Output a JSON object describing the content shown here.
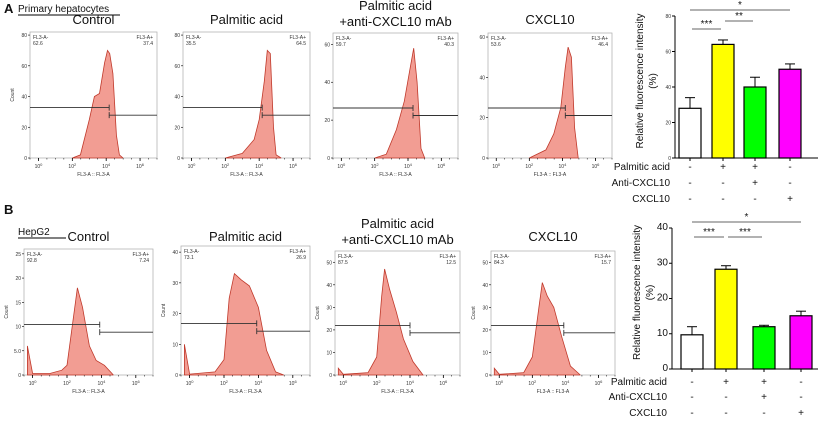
{
  "panels": [
    {
      "letter": "A",
      "cell_type": "Primary hepatocytes"
    },
    {
      "letter": "B",
      "cell_type": "HepG2"
    }
  ],
  "chart_data": [
    {
      "type": "area",
      "panel": "A",
      "title": "Control",
      "xlabel": "FL3-A :: FL3-A",
      "ylabel": "Count",
      "x_scale": "log",
      "xticks": [
        "10^0",
        "10^2",
        "10^4",
        "10^6"
      ],
      "yticks": [
        0,
        20,
        40,
        60,
        80
      ],
      "ylim": [
        0,
        82
      ],
      "gates": {
        "neg_label": "FL3-A-",
        "neg_value": "62.6",
        "pos_label": "FL3-A+",
        "pos_value": "37.4",
        "threshold": 15000
      },
      "points": [
        [
          100,
          0
        ],
        [
          300,
          2
        ],
        [
          1000,
          25
        ],
        [
          2000,
          40
        ],
        [
          4000,
          42
        ],
        [
          8000,
          62
        ],
        [
          12000,
          70
        ],
        [
          16000,
          68
        ],
        [
          25000,
          55
        ],
        [
          40000,
          15
        ],
        [
          60000,
          2
        ],
        [
          100000,
          0
        ]
      ]
    },
    {
      "type": "area",
      "panel": "A",
      "title": "Palmitic acid",
      "xlabel": "FL3-A :: FL3-A",
      "ylabel": "",
      "x_scale": "log",
      "xticks": [
        "10^0",
        "10^2",
        "10^4",
        "10^6"
      ],
      "yticks": [
        0,
        20,
        40,
        60,
        80
      ],
      "ylim": [
        0,
        82
      ],
      "gates": {
        "neg_label": "FL3-A-",
        "neg_value": "35.5",
        "pos_label": "FL3-A+",
        "pos_value": "64.5",
        "threshold": 15000
      },
      "points": [
        [
          100,
          0
        ],
        [
          1000,
          3
        ],
        [
          5000,
          12
        ],
        [
          10000,
          25
        ],
        [
          20000,
          50
        ],
        [
          30000,
          70
        ],
        [
          45000,
          68
        ],
        [
          70000,
          20
        ],
        [
          100000,
          2
        ],
        [
          200000,
          0
        ]
      ]
    },
    {
      "type": "area",
      "panel": "A",
      "title": "Palmitic acid\n+anti-CXCL10 mAb",
      "xlabel": "FL3-A :: FL3-A",
      "ylabel": "",
      "x_scale": "log",
      "xticks": [
        "10^0",
        "10^2",
        "10^4",
        "10^6"
      ],
      "yticks": [
        0,
        20,
        40,
        60
      ],
      "ylim": [
        0,
        66
      ],
      "gates": {
        "neg_label": "FL3-A-",
        "neg_value": "59.7",
        "pos_label": "FL3-A+",
        "pos_value": "40.3",
        "threshold": 20000
      },
      "points": [
        [
          100,
          0
        ],
        [
          500,
          2
        ],
        [
          2000,
          15
        ],
        [
          6000,
          30
        ],
        [
          12000,
          45
        ],
        [
          22000,
          58
        ],
        [
          35000,
          40
        ],
        [
          60000,
          5
        ],
        [
          100000,
          0
        ]
      ]
    },
    {
      "type": "area",
      "panel": "A",
      "title": "CXCL10",
      "xlabel": "FL3-A :: FL3-A",
      "ylabel": "",
      "x_scale": "log",
      "xticks": [
        "10^0",
        "10^2",
        "10^4",
        "10^6"
      ],
      "yticks": [
        0,
        20,
        40,
        60
      ],
      "ylim": [
        0,
        62
      ],
      "gates": {
        "neg_label": "FL3-A-",
        "neg_value": "53.6",
        "pos_label": "FL3-A+",
        "pos_value": "46.4",
        "threshold": 15000
      },
      "points": [
        [
          100,
          0
        ],
        [
          1000,
          4
        ],
        [
          3000,
          12
        ],
        [
          8000,
          25
        ],
        [
          15000,
          45
        ],
        [
          22000,
          55
        ],
        [
          35000,
          50
        ],
        [
          55000,
          15
        ],
        [
          90000,
          0
        ]
      ]
    },
    {
      "type": "bar",
      "panel": "A",
      "ylabel": "Relative fluorescence intensity\n(%)",
      "ylim": [
        0,
        80
      ],
      "yticks": [
        0,
        20,
        40,
        60,
        80
      ],
      "values": [
        28,
        64,
        40,
        50
      ],
      "errors": [
        6,
        2.5,
        5.5,
        3
      ],
      "colors": [
        "#ffffff",
        "#ffff00",
        "#00ff00",
        "#ff00ff"
      ],
      "conditions": [
        {
          "name": "Palmitic acid",
          "signs": [
            "-",
            "+",
            "+",
            "-"
          ]
        },
        {
          "name": "Anti-CXCL10",
          "signs": [
            "-",
            "-",
            "+",
            "-"
          ]
        },
        {
          "name": "CXCL10",
          "signs": [
            "-",
            "-",
            "-",
            "+"
          ]
        }
      ],
      "significance": [
        {
          "from": 0,
          "to": 1,
          "label": "***"
        },
        {
          "from": 1,
          "to": 2,
          "label": "**"
        },
        {
          "from": 0,
          "to": 3,
          "label": "*"
        }
      ]
    },
    {
      "type": "area",
      "panel": "B",
      "title": "Control",
      "xlabel": "FL3-A :: FL3-A",
      "ylabel": "Count",
      "x_scale": "log",
      "xticks": [
        "10^0",
        "10^2",
        "10^4",
        "10^6"
      ],
      "yticks": [
        "0",
        "5.0",
        "10",
        "15",
        "20",
        "25"
      ],
      "ylim": [
        0,
        26
      ],
      "gates": {
        "neg_label": "FL3-A-",
        "neg_value": "92.8",
        "pos_label": "FL3-A+",
        "pos_value": "7.24",
        "threshold": 8000
      },
      "points": [
        [
          0.5,
          6
        ],
        [
          1,
          0.3
        ],
        [
          10,
          0.3
        ],
        [
          50,
          1
        ],
        [
          100,
          2
        ],
        [
          200,
          10
        ],
        [
          400,
          18
        ],
        [
          800,
          14
        ],
        [
          2000,
          6
        ],
        [
          5000,
          3
        ],
        [
          15000,
          2
        ],
        [
          50000,
          0
        ]
      ]
    },
    {
      "type": "area",
      "panel": "B",
      "title": "Palmitic acid",
      "xlabel": "FL3-A :: FL3-A",
      "ylabel": "Count",
      "x_scale": "log",
      "xticks": [
        "10^0",
        "10^2",
        "10^4",
        "10^6"
      ],
      "yticks": [
        "0",
        "10",
        "20",
        "30",
        "40"
      ],
      "ylim": [
        0,
        42
      ],
      "gates": {
        "neg_label": "FL3-A-",
        "neg_value": "73.1",
        "pos_label": "FL3-A+",
        "pos_value": "26.9",
        "threshold": 8000
      },
      "points": [
        [
          0.5,
          10
        ],
        [
          1,
          0.3
        ],
        [
          30,
          1
        ],
        [
          100,
          5
        ],
        [
          200,
          25
        ],
        [
          400,
          33
        ],
        [
          1000,
          31
        ],
        [
          3000,
          29
        ],
        [
          10000,
          22
        ],
        [
          30000,
          8
        ],
        [
          100000,
          1
        ],
        [
          300000,
          0
        ]
      ]
    },
    {
      "type": "area",
      "panel": "B",
      "title": "Palmitic acid\n+anti-CXCL10 mAb",
      "xlabel": "FL3-A :: FL3-A",
      "ylabel": "Count",
      "x_scale": "log",
      "xticks": [
        "10^0",
        "10^2",
        "10^4",
        "10^6"
      ],
      "yticks": [
        "0",
        "10",
        "20",
        "30",
        "40",
        "50"
      ],
      "ylim": [
        0,
        55
      ],
      "gates": {
        "neg_label": "FL3-A-",
        "neg_value": "87.5",
        "pos_label": "FL3-A+",
        "pos_value": "12.5",
        "threshold": 10000
      },
      "points": [
        [
          0.5,
          3
        ],
        [
          1,
          0.3
        ],
        [
          30,
          1
        ],
        [
          100,
          8
        ],
        [
          200,
          35
        ],
        [
          300,
          47
        ],
        [
          600,
          38
        ],
        [
          1500,
          28
        ],
        [
          4000,
          16
        ],
        [
          15000,
          6
        ],
        [
          60000,
          0
        ]
      ]
    },
    {
      "type": "area",
      "panel": "B",
      "title": "CXCL10",
      "xlabel": "FL3-A :: FL3-A",
      "ylabel": "Count",
      "x_scale": "log",
      "xticks": [
        "10^0",
        "10^2",
        "10^4",
        "10^6"
      ],
      "yticks": [
        "0",
        "10",
        "20",
        "30",
        "40",
        "50"
      ],
      "ylim": [
        0,
        55
      ],
      "gates": {
        "neg_label": "FL3-A-",
        "neg_value": "84.3",
        "pos_label": "FL3-A+",
        "pos_value": "15.7",
        "threshold": 8000
      },
      "points": [
        [
          0.5,
          3
        ],
        [
          1,
          0.3
        ],
        [
          30,
          1
        ],
        [
          100,
          8
        ],
        [
          250,
          30
        ],
        [
          400,
          41
        ],
        [
          800,
          35
        ],
        [
          2000,
          30
        ],
        [
          6000,
          17
        ],
        [
          20000,
          4
        ],
        [
          80000,
          0
        ]
      ]
    },
    {
      "type": "bar",
      "panel": "B",
      "ylabel": "Relative fluorescence intensity\n(%)",
      "ylim": [
        0,
        40
      ],
      "yticks": [
        0,
        10,
        20,
        30,
        40
      ],
      "values": [
        9.7,
        28.3,
        12.0,
        15.1
      ],
      "errors": [
        2.3,
        1.0,
        0.4,
        1.3
      ],
      "colors": [
        "#ffffff",
        "#ffff00",
        "#00ff00",
        "#ff00ff"
      ],
      "conditions": [
        {
          "name": "Palmitic acid",
          "signs": [
            "-",
            "+",
            "+",
            "-"
          ]
        },
        {
          "name": "Anti-CXCL10",
          "signs": [
            "-",
            "-",
            "+",
            "-"
          ]
        },
        {
          "name": "CXCL10",
          "signs": [
            "-",
            "-",
            "-",
            "+"
          ]
        }
      ],
      "significance": [
        {
          "from": 0,
          "to": 1,
          "label": "***"
        },
        {
          "from": 1,
          "to": 2,
          "label": "***"
        },
        {
          "from": 0,
          "to": 3,
          "label": "*"
        }
      ]
    }
  ],
  "colors": {
    "histogram_fill": "#f08c80",
    "histogram_line": "#c0392b",
    "axis": "#000000"
  }
}
